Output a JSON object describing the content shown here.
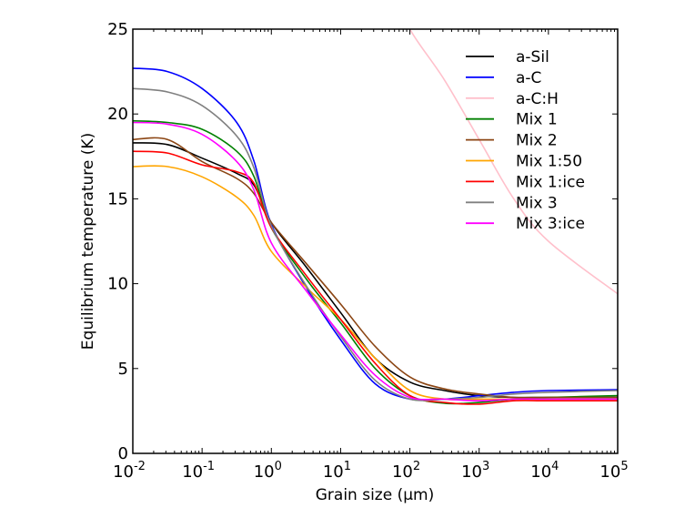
{
  "chart_data": {
    "type": "line",
    "title": "",
    "xlabel": "Grain size (μm)",
    "ylabel": "Equilibrium temperature (K)",
    "xscale": "log",
    "xlim": [
      0.01,
      100000
    ],
    "ylim": [
      0,
      25
    ],
    "grid": false,
    "legend_position": "top-right",
    "x_ticks": [
      {
        "exp": "-2",
        "base": "10"
      },
      {
        "exp": "-1",
        "base": "10"
      },
      {
        "exp": "0",
        "base": "10"
      },
      {
        "exp": "1",
        "base": "10"
      },
      {
        "exp": "2",
        "base": "10"
      },
      {
        "exp": "3",
        "base": "10"
      },
      {
        "exp": "4",
        "base": "10"
      },
      {
        "exp": "5",
        "base": "10"
      }
    ],
    "y_ticks": [
      "0",
      "5",
      "10",
      "15",
      "20",
      "25"
    ],
    "x_log": [
      -2,
      -1.5,
      -1,
      -0.5,
      -0.25,
      0,
      0.5,
      1,
      1.5,
      2,
      2.5,
      3,
      3.5,
      4,
      5
    ],
    "series": [
      {
        "name": "a-Sil",
        "color": "#000000",
        "values": [
          18.3,
          18.2,
          17.4,
          16.5,
          15.8,
          13.6,
          11.0,
          8.3,
          5.6,
          4.2,
          3.7,
          3.4,
          3.3,
          3.3,
          3.3
        ]
      },
      {
        "name": "a-C",
        "color": "#0000ff",
        "values": [
          22.7,
          22.5,
          21.5,
          19.5,
          17.2,
          13.5,
          9.8,
          6.7,
          4.1,
          3.2,
          3.2,
          3.4,
          3.6,
          3.7,
          3.75
        ]
      },
      {
        "name": "a-C:H",
        "color": "#ffc0cb",
        "values": [
          null,
          null,
          null,
          null,
          null,
          null,
          null,
          null,
          null,
          25.0,
          22.0,
          18.5,
          15.0,
          12.5,
          9.4
        ]
      },
      {
        "name": "Mix 1",
        "color": "#008000",
        "values": [
          19.6,
          19.5,
          19.1,
          17.8,
          16.3,
          13.3,
          10.3,
          7.7,
          5.0,
          3.4,
          2.95,
          3.0,
          3.2,
          3.3,
          3.4
        ]
      },
      {
        "name": "Mix 2",
        "color": "#8b4513",
        "values": [
          18.5,
          18.5,
          17.2,
          16.2,
          15.3,
          13.6,
          11.2,
          8.8,
          6.3,
          4.5,
          3.8,
          3.5,
          3.3,
          3.3,
          3.3
        ]
      },
      {
        "name": "Mix 1:50",
        "color": "#ffa500",
        "values": [
          16.9,
          16.9,
          16.3,
          15.1,
          14.0,
          11.9,
          9.8,
          7.9,
          5.6,
          3.7,
          3.2,
          3.2,
          3.2,
          3.2,
          3.2
        ]
      },
      {
        "name": "Mix 1:ice",
        "color": "#ff0000",
        "values": [
          17.8,
          17.7,
          17.0,
          16.6,
          15.9,
          13.3,
          10.5,
          7.9,
          5.3,
          3.4,
          3.0,
          2.9,
          3.1,
          3.1,
          3.1
        ]
      },
      {
        "name": "Mix 3",
        "color": "#808080",
        "values": [
          21.5,
          21.3,
          20.5,
          18.7,
          16.8,
          13.4,
          9.9,
          6.9,
          4.3,
          3.2,
          3.2,
          3.3,
          3.5,
          3.6,
          3.7
        ]
      },
      {
        "name": "Mix 3:ice",
        "color": "#ff00ff",
        "values": [
          19.5,
          19.4,
          18.8,
          17.2,
          15.5,
          12.4,
          9.6,
          7.0,
          4.6,
          3.3,
          3.2,
          3.1,
          3.2,
          3.2,
          3.2
        ]
      }
    ]
  }
}
